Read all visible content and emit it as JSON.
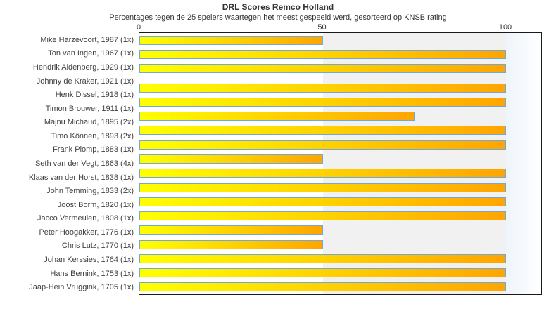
{
  "chart_data": {
    "type": "bar",
    "orientation": "horizontal",
    "title": "DRL Scores Remco Holland",
    "subtitle": "Percentages tegen de 25 spelers waartegen het meest gespeeld werd, gesorteerd op KNSB rating",
    "xlim": [
      0,
      100
    ],
    "x_ticks": [
      0,
      50,
      100
    ],
    "x_tick_labels": [
      "0",
      "50",
      "100"
    ],
    "grid": "vertical band at 50-100 shaded",
    "legend": false,
    "categories": [
      "Mike Harzevoort, 1987 (1x)",
      "Ton van Ingen, 1967 (1x)",
      "Hendrik Aldenberg, 1929 (1x)",
      "Johnny de Kraker, 1921 (1x)",
      "Henk Dissel, 1918 (1x)",
      "Timon Brouwer, 1911 (1x)",
      "Majnu Michaud, 1895 (2x)",
      "Timo Können, 1893 (2x)",
      "Frank Plomp, 1883 (1x)",
      "Seth van der Vegt, 1863 (4x)",
      "Klaas van der Horst, 1838 (1x)",
      "John Temming, 1833 (2x)",
      "Joost Borm, 1820 (1x)",
      "Jacco Vermeulen, 1808 (1x)",
      "Peter Hoogakker, 1776 (1x)",
      "Chris Lutz, 1770 (1x)",
      "Johan Kerssies, 1764 (1x)",
      "Hans Bernink, 1753 (1x)",
      "Jaap-Hein Vruggink, 1705 (1x)"
    ],
    "values": [
      50,
      100,
      100,
      0,
      100,
      100,
      75,
      100,
      100,
      50,
      100,
      100,
      100,
      100,
      50,
      50,
      100,
      100,
      100
    ]
  },
  "style": {
    "bar_gradient_start": "#ffff00",
    "bar_gradient_end": "#ffa500",
    "bar_border": "#6fa8dc",
    "band_left": "#ffffff",
    "band_mid": "#f1f1f1",
    "band_right_start": "#eef5fb",
    "band_right_end": "#ffffff",
    "plot_border": "#1a1a1a",
    "text_color": "#333333"
  }
}
